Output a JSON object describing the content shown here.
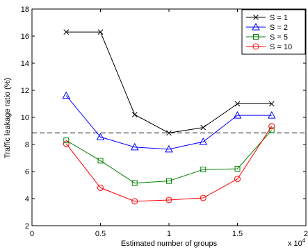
{
  "chart_data": {
    "type": "line",
    "xlabel": "Estimated number of groups",
    "ylabel": "Traffic leakage ratio (%)",
    "x_multiplier_label": "x 10",
    "x_multiplier_exponent": "4",
    "xlim": [
      0,
      2
    ],
    "ylim": [
      2,
      18
    ],
    "x_ticks": [
      0,
      0.5,
      1,
      1.5,
      2
    ],
    "x_tick_labels": [
      "0",
      "0.5",
      "1",
      "1.5",
      "2"
    ],
    "y_ticks": [
      2,
      4,
      6,
      8,
      10,
      12,
      14,
      16,
      18
    ],
    "y_tick_labels": [
      "2",
      "4",
      "6",
      "8",
      "10",
      "12",
      "14",
      "16",
      "18"
    ],
    "grid": false,
    "legend_position": "top-right",
    "x": [
      0.25,
      0.5,
      0.75,
      1.0,
      1.25,
      1.5,
      1.75
    ],
    "reference_line": {
      "y": 8.85,
      "style": "dashed",
      "color": "#000000"
    },
    "series": [
      {
        "name": "S = 1",
        "color": "#000000",
        "marker": "x",
        "values": [
          16.3,
          16.3,
          10.2,
          8.85,
          9.25,
          11.0,
          11.0
        ]
      },
      {
        "name": "S = 2",
        "color": "#0000ff",
        "marker": "triangle",
        "values": [
          11.6,
          8.55,
          7.8,
          7.65,
          8.2,
          10.15,
          10.15
        ]
      },
      {
        "name": "S = 5",
        "color": "#008000",
        "marker": "square",
        "values": [
          8.3,
          6.8,
          5.15,
          5.3,
          6.15,
          6.2,
          9.05
        ]
      },
      {
        "name": "S = 10",
        "color": "#ff0000",
        "marker": "circle",
        "values": [
          8.05,
          4.8,
          3.8,
          3.9,
          4.05,
          5.45,
          9.35
        ]
      }
    ]
  }
}
